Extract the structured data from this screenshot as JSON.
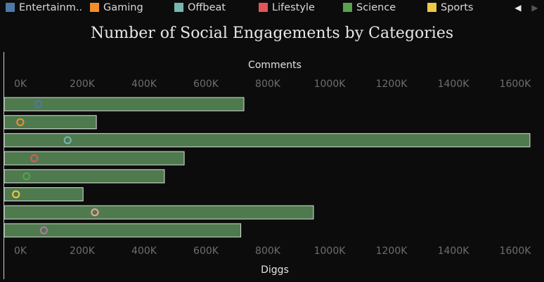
{
  "legend": {
    "items": [
      {
        "label": "Entertainm..",
        "color": "#4e79a7"
      },
      {
        "label": "Gaming",
        "color": "#f28e2b"
      },
      {
        "label": "Offbeat",
        "color": "#76b7b2"
      },
      {
        "label": "Lifestyle",
        "color": "#e15759"
      },
      {
        "label": "Science",
        "color": "#59a14f"
      },
      {
        "label": "Sports",
        "color": "#edc948"
      }
    ],
    "prev_icon": "triangle-left-icon",
    "next_icon": "triangle-right-icon",
    "prev_glyph": "◀",
    "next_glyph": "▶"
  },
  "chart_data": {
    "type": "bar",
    "orientation": "horizontal",
    "title": "Number of  Social Engagements  by Categories",
    "top_axis_label": "Comments",
    "bottom_axis_label": "Diggs",
    "xlim": [
      0,
      1750000
    ],
    "ticks": [
      0,
      200000,
      400000,
      600000,
      800000,
      1000000,
      1200000,
      1400000,
      1600000
    ],
    "tick_labels": [
      "0K",
      "200K",
      "400K",
      "600K",
      "800K",
      "1000K",
      "1200K",
      "1400K",
      "1600K"
    ],
    "bar_color": "#4e7a4e",
    "bars": [
      {
        "diggs": 775000,
        "comments": 110000,
        "marker_color": "#4e79a7"
      },
      {
        "diggs": 298000,
        "comments": 52000,
        "marker_color": "#f28e2b"
      },
      {
        "diggs": 1700000,
        "comments": 205000,
        "marker_color": "#76b7b2"
      },
      {
        "diggs": 582000,
        "comments": 97000,
        "marker_color": "#e15759"
      },
      {
        "diggs": 518000,
        "comments": 72000,
        "marker_color": "#59a14f"
      },
      {
        "diggs": 255000,
        "comments": 38000,
        "marker_color": "#edc948"
      },
      {
        "diggs": 1000000,
        "comments": 293000,
        "marker_color": "#ff9d9a"
      },
      {
        "diggs": 765000,
        "comments": 128000,
        "marker_color": "#b07aa1"
      }
    ],
    "grid": false,
    "legend_position": "top"
  }
}
